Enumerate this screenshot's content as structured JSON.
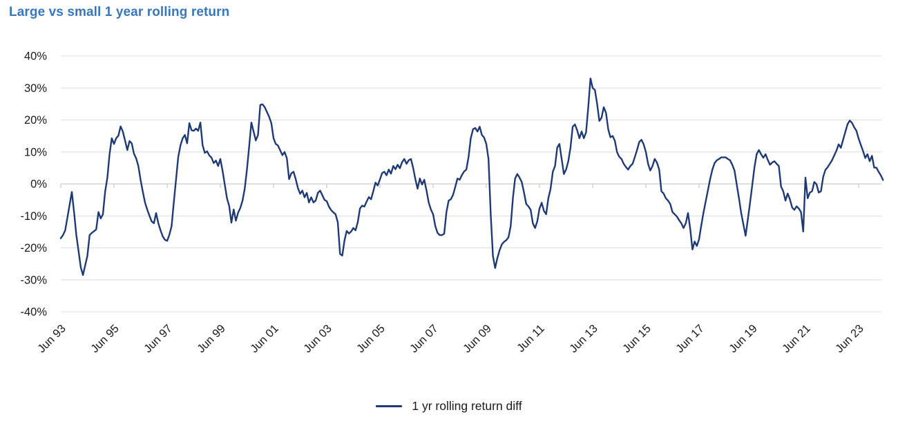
{
  "title": "Large vs small 1 year rolling return",
  "colors": {
    "title": "#3777bc",
    "series": "#1e3a74",
    "gridline": "#dcdcdc",
    "axis_line": "#bfbfbf",
    "tick_label": "#1a1a1a"
  },
  "legend": {
    "label": "1 yr rolling return diff"
  },
  "chart_data": {
    "type": "line",
    "title": "Large vs small 1 year rolling return",
    "xlabel": "",
    "ylabel": "",
    "y_format": "percent",
    "ylim": [
      -40,
      40
    ],
    "y_ticks": [
      40,
      30,
      20,
      10,
      0,
      -10,
      -20,
      -30,
      -40
    ],
    "grid": "horizontal",
    "legend_position": "bottom-center",
    "x_tick_labels": [
      "Jun 93",
      "Jun 95",
      "Jun 97",
      "Jun 99",
      "Jun 01",
      "Jun 03",
      "Jun 05",
      "Jun 07",
      "Jun 09",
      "Jun 11",
      "Jun 13",
      "Jun 15",
      "Jun 17",
      "Jun 19",
      "Jun 21",
      "Jun 23"
    ],
    "x_start": "Jun 1993",
    "x_end": "May 2024",
    "frequency": "monthly",
    "series": [
      {
        "name": "1 yr rolling return diff",
        "color": "#1e3a74",
        "values": [
          -17,
          -16,
          -14.5,
          -10.5,
          -6.5,
          -2.5,
          -9,
          -16,
          -21,
          -26,
          -28.5,
          -25.5,
          -22.5,
          -16,
          -15.3,
          -14.8,
          -14.2,
          -8.8,
          -10.8,
          -9.5,
          -2.4,
          1.9,
          9.3,
          14.3,
          12.5,
          14.3,
          15.1,
          18.0,
          16.4,
          13.6,
          10.6,
          13.4,
          12.7,
          9.5,
          8.0,
          5.6,
          1.3,
          -2.4,
          -5.8,
          -8.0,
          -9.9,
          -11.7,
          -12.3,
          -9.1,
          -12.3,
          -14.5,
          -16.4,
          -17.5,
          -17.8,
          -15.9,
          -13.2,
          -5.8,
          1.3,
          8.4,
          12.1,
          14.3,
          15.3,
          12.7,
          19.0,
          16.8,
          16.6,
          17.3,
          16.6,
          19.2,
          12.1,
          9.7,
          10.2,
          8.9,
          8.2,
          6.5,
          7.3,
          5.6,
          7.8,
          4.1,
          -0.2,
          -4.5,
          -6.9,
          -12.1,
          -8.0,
          -11.5,
          -9.0,
          -7.5,
          -5.2,
          -1.5,
          4.5,
          11.7,
          19.2,
          16.4,
          13.6,
          15.3,
          24.7,
          24.9,
          24.0,
          22.5,
          21.0,
          19.0,
          14.3,
          12.5,
          12.0,
          10.5,
          9.0,
          10.0,
          8.0,
          1.5,
          3.3,
          3.8,
          1.5,
          -1.3,
          -3.1,
          -2.1,
          -4.2,
          -2.8,
          -5.8,
          -4.2,
          -5.8,
          -5.2,
          -2.8,
          -2.1,
          -3.5,
          -5.0,
          -5.4,
          -7.1,
          -8.2,
          -8.9,
          -9.5,
          -12.0,
          -21.9,
          -22.4,
          -17.7,
          -14.7,
          -15.5,
          -14.9,
          -13.8,
          -14.5,
          -12.0,
          -7.7,
          -6.8,
          -7.1,
          -5.5,
          -4.1,
          -4.8,
          -2.3,
          0.4,
          -0.5,
          1.4,
          3.4,
          3.8,
          2.7,
          4.5,
          3.2,
          5.6,
          4.6,
          6.0,
          4.9,
          6.8,
          7.8,
          6.3,
          7.4,
          7.8,
          5.0,
          1.5,
          -1.5,
          1.7,
          -0.2,
          1.3,
          -2.0,
          -5.8,
          -8.0,
          -9.5,
          -13.2,
          -15.3,
          -16.0,
          -16.0,
          -15.6,
          -8.8,
          -5.2,
          -4.8,
          -3.4,
          -0.9,
          1.7,
          1.3,
          2.8,
          3.9,
          4.5,
          8.4,
          14.3,
          17.1,
          17.5,
          16.4,
          17.9,
          15.3,
          14.5,
          12.5,
          7.8,
          -9.5,
          -22.5,
          -26.3,
          -23.2,
          -20.7,
          -18.9,
          -18.1,
          -17.6,
          -16.7,
          -13.2,
          -4.5,
          1.7,
          3.1,
          2.0,
          0.6,
          -2.6,
          -6.3,
          -7.0,
          -8.1,
          -12.3,
          -13.8,
          -11.7,
          -7.7,
          -5.9,
          -8.4,
          -9.5,
          -4.5,
          -1.6,
          3.8,
          5.6,
          11.4,
          12.5,
          7.8,
          3.1,
          4.5,
          7.1,
          11.4,
          17.9,
          18.6,
          16.8,
          14.3,
          16.4,
          14.3,
          16.1,
          24.0,
          33.0,
          30.0,
          29.4,
          25.1,
          19.7,
          20.7,
          24.0,
          22.2,
          17.1,
          14.6,
          15.0,
          13.5,
          9.9,
          8.5,
          7.8,
          6.3,
          5.3,
          4.5,
          5.6,
          6.3,
          8.4,
          10.6,
          13.1,
          13.8,
          12.4,
          10.0,
          6.3,
          4.2,
          5.6,
          7.8,
          6.7,
          4.5,
          -2.3,
          -3.0,
          -4.5,
          -5.2,
          -6.3,
          -8.8,
          -9.5,
          -10.2,
          -11.3,
          -12.3,
          -13.8,
          -12.3,
          -9.1,
          -14.0,
          -20.5,
          -18.0,
          -19.4,
          -17.3,
          -13.0,
          -9.0,
          -5.5,
          -2.0,
          1.5,
          4.5,
          6.5,
          7.4,
          7.8,
          8.3,
          8.3,
          8.3,
          7.8,
          7.4,
          6.0,
          4.2,
          -0.1,
          -4.5,
          -9.1,
          -12.7,
          -16.2,
          -11.1,
          -5.9,
          -0.4,
          5.2,
          9.3,
          10.6,
          9.3,
          8.2,
          9.3,
          7.5,
          6.0,
          6.7,
          7.1,
          6.3,
          5.6,
          -0.8,
          -2.3,
          -5.2,
          -3.0,
          -4.8,
          -7.4,
          -8.1,
          -7.0,
          -7.7,
          -8.8,
          -14.9,
          2.0,
          -4.5,
          -2.7,
          -2.3,
          0.6,
          -0.1,
          -2.7,
          -2.3,
          2.2,
          4.4,
          5.2,
          6.3,
          7.4,
          8.9,
          10.4,
          12.4,
          11.3,
          13.8,
          16.3,
          18.7,
          19.8,
          19.1,
          17.7,
          16.6,
          14.2,
          12.2,
          10.3,
          8.1,
          9.3,
          7.1,
          8.8,
          5.1,
          5.1,
          3.8,
          2.7,
          1.2
        ]
      }
    ]
  }
}
